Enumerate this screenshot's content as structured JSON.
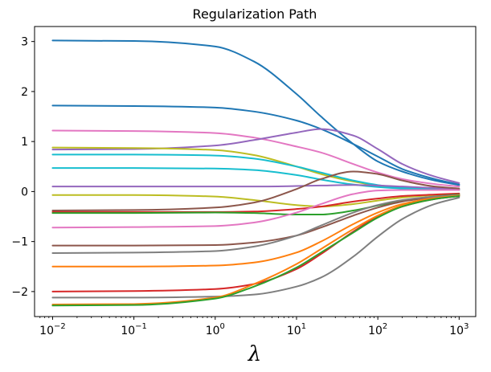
{
  "chart_data": {
    "type": "line",
    "title": "Regularization Path",
    "xlabel": "λ",
    "ylabel": "",
    "xscale": "log",
    "xlim": [
      0.006,
      1600
    ],
    "ylim": [
      -2.5,
      3.3
    ],
    "grid": false,
    "legend": "none",
    "x_ticks": [
      {
        "value": 0.01,
        "base": "10",
        "exp": "−2"
      },
      {
        "value": 0.1,
        "base": "10",
        "exp": "−1"
      },
      {
        "value": 1,
        "base": "10",
        "exp": "0"
      },
      {
        "value": 10,
        "base": "10",
        "exp": "1"
      },
      {
        "value": 100,
        "base": "10",
        "exp": "2"
      },
      {
        "value": 1000,
        "base": "10",
        "exp": "3"
      }
    ],
    "y_ticks": [
      {
        "value": 3,
        "label": "3"
      },
      {
        "value": 2,
        "label": "2"
      },
      {
        "value": 1,
        "label": "1"
      },
      {
        "value": 0,
        "label": "0"
      },
      {
        "value": -1,
        "label": "−1"
      },
      {
        "value": -2,
        "label": "−2"
      }
    ],
    "x": [
      0.01,
      0.1,
      1,
      3,
      10,
      20,
      50,
      100,
      200,
      500,
      1000
    ],
    "series": [
      {
        "color": "#1f77b4",
        "values": [
          3.02,
          3.01,
          2.9,
          2.6,
          1.95,
          1.5,
          0.95,
          0.6,
          0.4,
          0.22,
          0.13
        ]
      },
      {
        "color": "#1f77b4",
        "values": [
          1.72,
          1.71,
          1.68,
          1.6,
          1.42,
          1.25,
          0.95,
          0.7,
          0.45,
          0.25,
          0.14
        ]
      },
      {
        "color": "#e377c2",
        "values": [
          1.22,
          1.21,
          1.17,
          1.08,
          0.9,
          0.78,
          0.55,
          0.38,
          0.25,
          0.15,
          0.1
        ]
      },
      {
        "color": "#9467bd",
        "values": [
          0.84,
          0.85,
          0.92,
          1.03,
          1.18,
          1.25,
          1.12,
          0.85,
          0.55,
          0.3,
          0.17
        ]
      },
      {
        "color": "#bcbd22",
        "values": [
          0.88,
          0.87,
          0.83,
          0.73,
          0.5,
          0.35,
          0.2,
          0.12,
          0.07,
          0.04,
          0.03
        ]
      },
      {
        "color": "#17becf",
        "values": [
          0.74,
          0.74,
          0.72,
          0.66,
          0.5,
          0.38,
          0.22,
          0.13,
          0.08,
          0.05,
          0.04
        ]
      },
      {
        "color": "#17becf",
        "values": [
          0.47,
          0.47,
          0.46,
          0.43,
          0.33,
          0.24,
          0.14,
          0.09,
          0.06,
          0.04,
          0.03
        ]
      },
      {
        "color": "#9467bd",
        "values": [
          0.1,
          0.1,
          0.1,
          0.1,
          0.11,
          0.12,
          0.13,
          0.12,
          0.1,
          0.07,
          0.05
        ]
      },
      {
        "color": "#bcbd22",
        "values": [
          -0.07,
          -0.07,
          -0.1,
          -0.17,
          -0.27,
          -0.3,
          -0.25,
          -0.18,
          -0.12,
          -0.07,
          -0.05
        ]
      },
      {
        "color": "#8c564b",
        "values": [
          -0.38,
          -0.37,
          -0.32,
          -0.22,
          0.05,
          0.25,
          0.4,
          0.35,
          0.22,
          0.1,
          0.06
        ]
      },
      {
        "color": "#d62728",
        "values": [
          -0.41,
          -0.41,
          -0.41,
          -0.4,
          -0.35,
          -0.3,
          -0.2,
          -0.14,
          -0.09,
          -0.06,
          -0.04
        ]
      },
      {
        "color": "#2ca02c",
        "values": [
          -0.43,
          -0.43,
          -0.42,
          -0.43,
          -0.46,
          -0.46,
          -0.38,
          -0.28,
          -0.18,
          -0.1,
          -0.06
        ]
      },
      {
        "color": "#e377c2",
        "values": [
          -0.72,
          -0.71,
          -0.69,
          -0.62,
          -0.42,
          -0.25,
          -0.05,
          0.02,
          0.03,
          0.03,
          0.03
        ]
      },
      {
        "color": "#8c564b",
        "values": [
          -1.08,
          -1.08,
          -1.07,
          -1.02,
          -0.88,
          -0.72,
          -0.48,
          -0.32,
          -0.2,
          -0.11,
          -0.07
        ]
      },
      {
        "color": "#7f7f7f",
        "values": [
          -1.23,
          -1.22,
          -1.19,
          -1.1,
          -0.88,
          -0.68,
          -0.42,
          -0.27,
          -0.17,
          -0.1,
          -0.07
        ]
      },
      {
        "color": "#ff7f0e",
        "values": [
          -1.5,
          -1.5,
          -1.48,
          -1.42,
          -1.22,
          -1.0,
          -0.65,
          -0.42,
          -0.25,
          -0.13,
          -0.08
        ]
      },
      {
        "color": "#d62728",
        "values": [
          -2.0,
          -1.99,
          -1.95,
          -1.85,
          -1.55,
          -1.25,
          -0.8,
          -0.5,
          -0.3,
          -0.15,
          -0.09
        ]
      },
      {
        "color": "#7f7f7f",
        "values": [
          -2.12,
          -2.12,
          -2.1,
          -2.06,
          -1.9,
          -1.72,
          -1.3,
          -0.9,
          -0.55,
          -0.25,
          -0.12
        ]
      },
      {
        "color": "#ff7f0e",
        "values": [
          -2.26,
          -2.25,
          -2.12,
          -1.85,
          -1.45,
          -1.15,
          -0.75,
          -0.48,
          -0.28,
          -0.14,
          -0.08
        ]
      },
      {
        "color": "#2ca02c",
        "values": [
          -2.28,
          -2.27,
          -2.14,
          -1.9,
          -1.52,
          -1.22,
          -0.82,
          -0.52,
          -0.3,
          -0.15,
          -0.09
        ]
      }
    ]
  }
}
